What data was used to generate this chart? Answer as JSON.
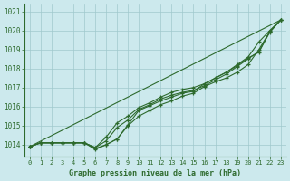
{
  "xlabel": "Graphe pression niveau de la mer (hPa)",
  "x": [
    0,
    1,
    2,
    3,
    4,
    5,
    6,
    7,
    8,
    9,
    10,
    11,
    12,
    13,
    14,
    15,
    16,
    17,
    18,
    19,
    20,
    21,
    22,
    23
  ],
  "line1": [
    1013.9,
    1014.1,
    1014.1,
    1014.1,
    1014.1,
    1014.1,
    1013.8,
    1014.0,
    1014.3,
    1015.05,
    1015.8,
    1016.05,
    1016.3,
    1016.5,
    1016.7,
    1016.8,
    1017.2,
    1017.5,
    1017.8,
    1018.2,
    1018.6,
    1019.4,
    1020.0,
    1020.55
  ],
  "line2": [
    1013.9,
    1014.1,
    1014.1,
    1014.1,
    1014.1,
    1014.1,
    1013.75,
    1014.0,
    1014.3,
    1015.0,
    1015.5,
    1015.8,
    1016.1,
    1016.3,
    1016.55,
    1016.7,
    1017.05,
    1017.3,
    1017.5,
    1017.8,
    1018.2,
    1019.0,
    1019.95,
    1020.55
  ],
  "line3": [
    1013.9,
    1014.1,
    1014.1,
    1014.1,
    1014.1,
    1014.1,
    1013.85,
    1014.2,
    1014.9,
    1015.3,
    1015.85,
    1016.1,
    1016.4,
    1016.6,
    1016.75,
    1016.85,
    1017.1,
    1017.4,
    1017.7,
    1018.1,
    1018.5,
    1018.9,
    1019.9,
    1020.55
  ],
  "line4": [
    1013.9,
    1014.1,
    1014.1,
    1014.1,
    1014.1,
    1014.1,
    1013.85,
    1014.4,
    1015.15,
    1015.5,
    1015.95,
    1016.2,
    1016.5,
    1016.75,
    1016.9,
    1017.0,
    1017.2,
    1017.5,
    1017.8,
    1018.15,
    1018.55,
    1018.85,
    1019.95,
    1020.55
  ],
  "background_color": "#cce9ed",
  "grid_color": "#a0c8cc",
  "line_color": "#2d6a2d",
  "tick_label_color": "#2d6a2d",
  "xlabel_color": "#2d6a2d",
  "ylim": [
    1013.4,
    1021.4
  ],
  "yticks": [
    1014,
    1015,
    1016,
    1017,
    1018,
    1019,
    1020,
    1021
  ],
  "xticks": [
    0,
    1,
    2,
    3,
    4,
    5,
    6,
    7,
    8,
    9,
    10,
    11,
    12,
    13,
    14,
    15,
    16,
    17,
    18,
    19,
    20,
    21,
    22,
    23
  ],
  "marker": "+",
  "markersize": 3.5,
  "linewidth": 0.8
}
